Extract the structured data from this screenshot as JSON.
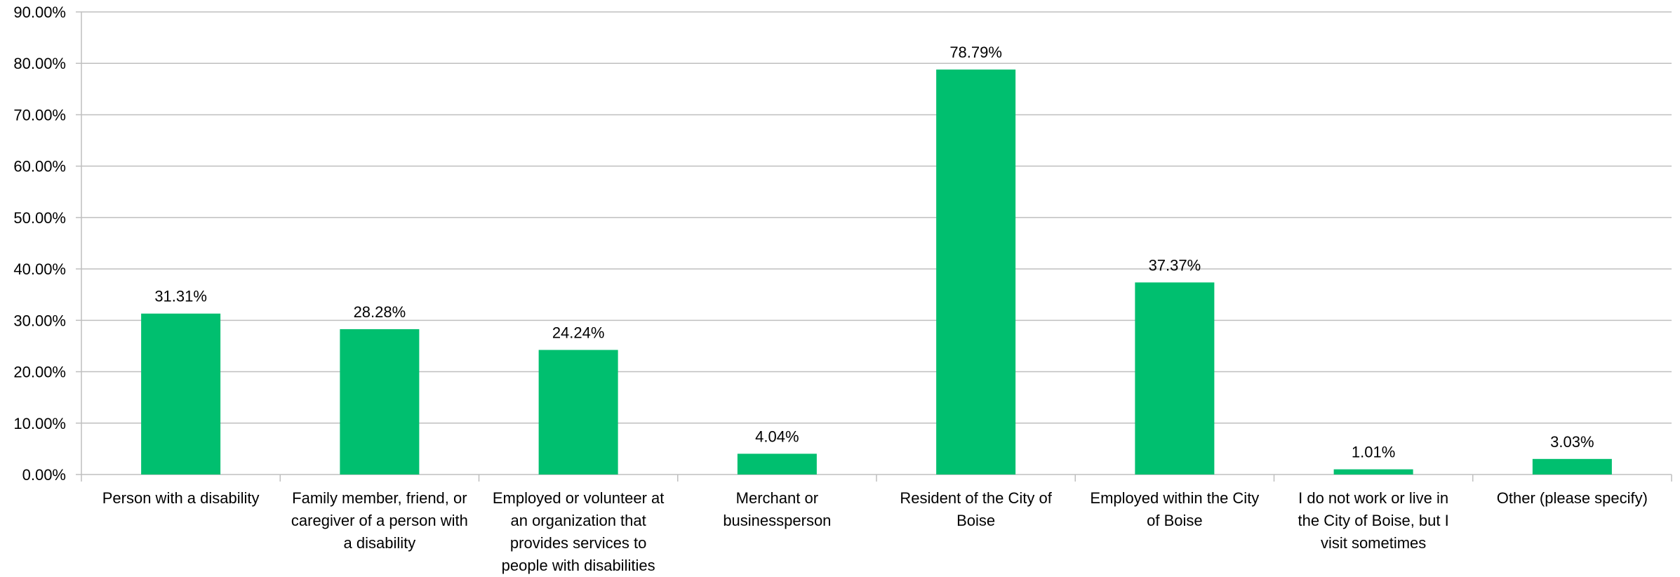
{
  "chart_data": {
    "type": "bar",
    "categories": [
      [
        "Person with a disability"
      ],
      [
        "Family member, friend, or",
        "caregiver of a person with",
        "a disability"
      ],
      [
        "Employed or volunteer at",
        "an organization that",
        "provides services to",
        "people with disabilities"
      ],
      [
        "Merchant or",
        "businessperson"
      ],
      [
        "Resident of the City of",
        "Boise"
      ],
      [
        "Employed within the City",
        "of Boise"
      ],
      [
        "I do not work or live in",
        "the City of Boise, but I",
        "visit sometimes"
      ],
      [
        "Other (please specify)"
      ]
    ],
    "values": [
      31.31,
      28.28,
      24.24,
      4.04,
      78.79,
      37.37,
      1.01,
      3.03
    ],
    "value_labels": [
      "31.31%",
      "28.28%",
      "24.24%",
      "4.04%",
      "78.79%",
      "37.37%",
      "1.01%",
      "3.03%"
    ],
    "ylim": [
      0,
      90
    ],
    "yticks": [
      0,
      10,
      20,
      30,
      40,
      50,
      60,
      70,
      80,
      90
    ],
    "ytick_labels": [
      "0.00%",
      "10.00%",
      "20.00%",
      "30.00%",
      "40.00%",
      "50.00%",
      "60.00%",
      "70.00%",
      "80.00%",
      "90.00%"
    ],
    "grid": true,
    "legend": "none",
    "colors": {
      "bar": "#00BF6F",
      "grid": "#BFBFBF",
      "axis": "#BFBFBF",
      "text": "#000000"
    }
  }
}
